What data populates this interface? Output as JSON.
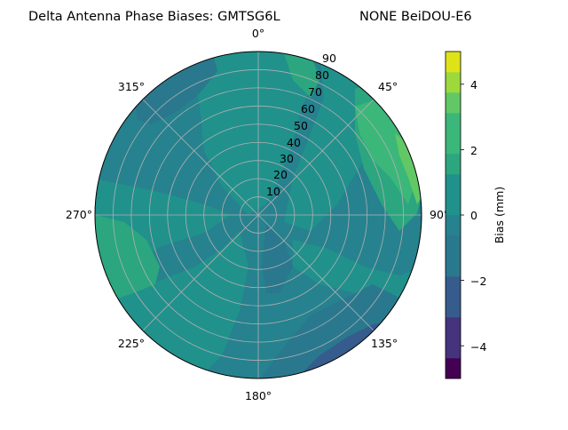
{
  "chart_data": {
    "type": "polar-contour",
    "title_left": "Delta Antenna Phase Biases: GMTSG6L",
    "title_right": "NONE BeiDOU-E6",
    "angle_labels": [
      "0°",
      "45°",
      "90°",
      "135°",
      "180°",
      "225°",
      "270°",
      "315°"
    ],
    "radial_labels": [
      "10",
      "20",
      "30",
      "40",
      "50",
      "60",
      "70",
      "80",
      "90"
    ],
    "radial_range": [
      0,
      90
    ],
    "grid": true,
    "colorbar": {
      "label": "Bias (mm)",
      "ticks": [
        "−4",
        "−2",
        "0",
        "2",
        "4"
      ],
      "range": [
        -5,
        5
      ],
      "levels": [
        -5,
        -4.375,
        -3.75,
        -3.125,
        -2.5,
        -1.875,
        -1.25,
        -0.625,
        0,
        0.625,
        1.25,
        1.875,
        2.5,
        3.125,
        3.75,
        4.375,
        5
      ],
      "placement": "right"
    },
    "colors": {
      "n5": "#440154",
      "n4": "#46337e",
      "n3": "#365c8d",
      "n2": "#2a788e",
      "n1": "#26828e",
      "p0": "#21918c",
      "p1": "#2ca67e",
      "p2": "#3bb77a",
      "p3": "#61c865",
      "p4": "#9dd93b",
      "p5": "#dde318"
    },
    "regions": [
      {
        "level": "n1",
        "description_key": "blue-teal band"
      },
      {
        "level": "n2",
        "description_key": "dark blue patches"
      },
      {
        "level": "n3",
        "description_key": "darkest sector bottom-right"
      },
      {
        "level": "p1",
        "description_key": "green patches"
      },
      {
        "level": "p2",
        "description_key": "light green"
      },
      {
        "level": "p3",
        "description_key": "yellow-green edge"
      }
    ]
  }
}
